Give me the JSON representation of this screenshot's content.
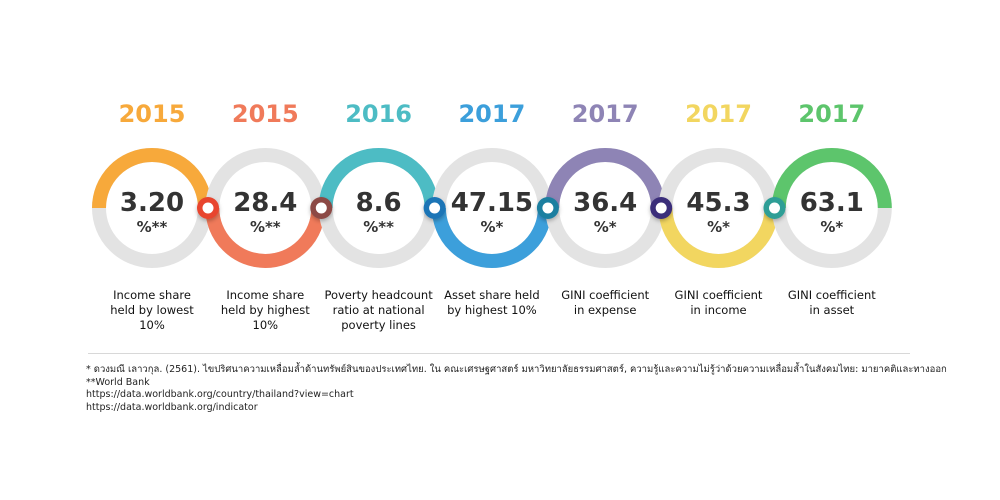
{
  "items": [
    {
      "year": "2015",
      "value": "3.20",
      "unit": "%**",
      "label": [
        "Income share",
        "held by lowest",
        "10%"
      ],
      "color": "#F7A93B",
      "dot": "#E8452D"
    },
    {
      "year": "2015",
      "value": "28.4",
      "unit": "%**",
      "label": [
        "Income share",
        "held by highest",
        "10%"
      ],
      "color": "#F07A5A",
      "dot": "#8C4A45"
    },
    {
      "year": "2016",
      "value": "8.6",
      "unit": "%**",
      "label": [
        "Poverty headcount",
        "ratio at national",
        "poverty lines"
      ],
      "color": "#4DBCC4",
      "dot": "#1F74B6"
    },
    {
      "year": "2017",
      "value": "47.15",
      "unit": "%*",
      "label": [
        "Asset share held",
        "by highest 10%"
      ],
      "color": "#3C9FDB",
      "dot": "#1E7FA0"
    },
    {
      "year": "2017",
      "value": "36.4",
      "unit": "%*",
      "label": [
        "GINI coefficient",
        "in expense"
      ],
      "color": "#8E84B5",
      "dot": "#3A2E7A"
    },
    {
      "year": "2017",
      "value": "45.3",
      "unit": "%*",
      "label": [
        "GINI coefficient",
        "in income"
      ],
      "color": "#F2D660",
      "dot": "#2E9E96"
    },
    {
      "year": "2017",
      "value": "63.1",
      "unit": "%*",
      "label": [
        "GINI coefficient",
        "in asset"
      ],
      "color": "#5DC56C",
      "dot": null
    }
  ],
  "footnotes": [
    "* ดวงมณี เลาวกุล. (2561). ไขปริศนาความเหลื่อมล้ำด้านทรัพย์สินของประเทศไทย. ใน คณะเศรษฐศาสตร์ มหาวิทยาลัยธรรมศาสตร์, ความรู้และความไม่รู้ว่าด้วยความเหลื่อมล้ำในสังคมไทย: มายาคติและทางออก",
    "**World Bank",
    "https://data.worldbank.org/country/thailand?view=chart",
    "https://data.worldbank.org/indicator"
  ]
}
